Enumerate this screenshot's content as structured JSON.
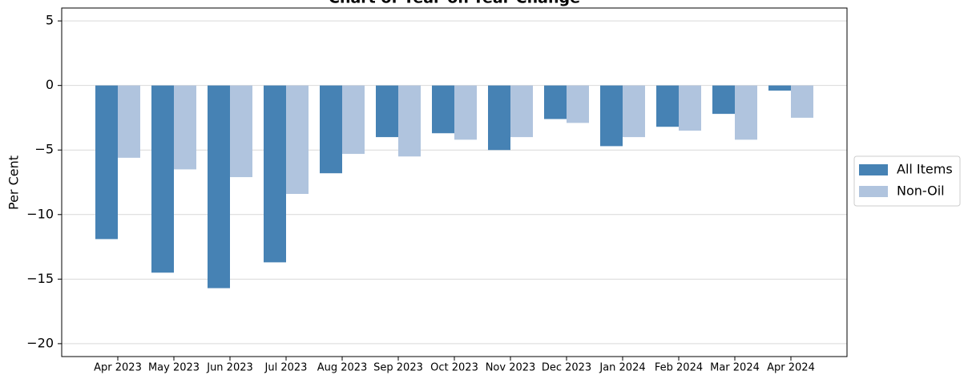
{
  "chart_data": {
    "type": "bar",
    "title": "Chart of Year-on-Year Change",
    "y_label": "Per Cent",
    "categories": [
      "Apr 2023",
      "May 2023",
      "Jun 2023",
      "Jul 2023",
      "Aug 2023",
      "Sep 2023",
      "Oct 2023",
      "Nov 2023",
      "Dec 2023",
      "Jan 2024",
      "Feb 2024",
      "Mar 2024",
      "Apr 2024"
    ],
    "series": [
      {
        "name": "All Items",
        "color": "#4682b4",
        "values": [
          -11.9,
          -14.5,
          -15.7,
          -13.7,
          -6.8,
          -4.0,
          -3.7,
          -5.0,
          -2.6,
          -4.7,
          -3.2,
          -2.2,
          -0.4
        ]
      },
      {
        "name": "Non-Oil",
        "color": "#b0c4de",
        "values": [
          -5.6,
          -6.5,
          -7.1,
          -8.4,
          -5.3,
          -5.5,
          -4.2,
          -4.0,
          -2.9,
          -4.0,
          -3.5,
          -4.2,
          -2.5
        ]
      }
    ],
    "ylim": [
      -21,
      6
    ],
    "yticks": [
      {
        "value": -20,
        "label": "−20"
      },
      {
        "value": -15,
        "label": "−15"
      },
      {
        "value": -10,
        "label": "−10"
      },
      {
        "value": -5,
        "label": "−5"
      },
      0,
      5
    ],
    "grid": true,
    "legend": "right"
  }
}
